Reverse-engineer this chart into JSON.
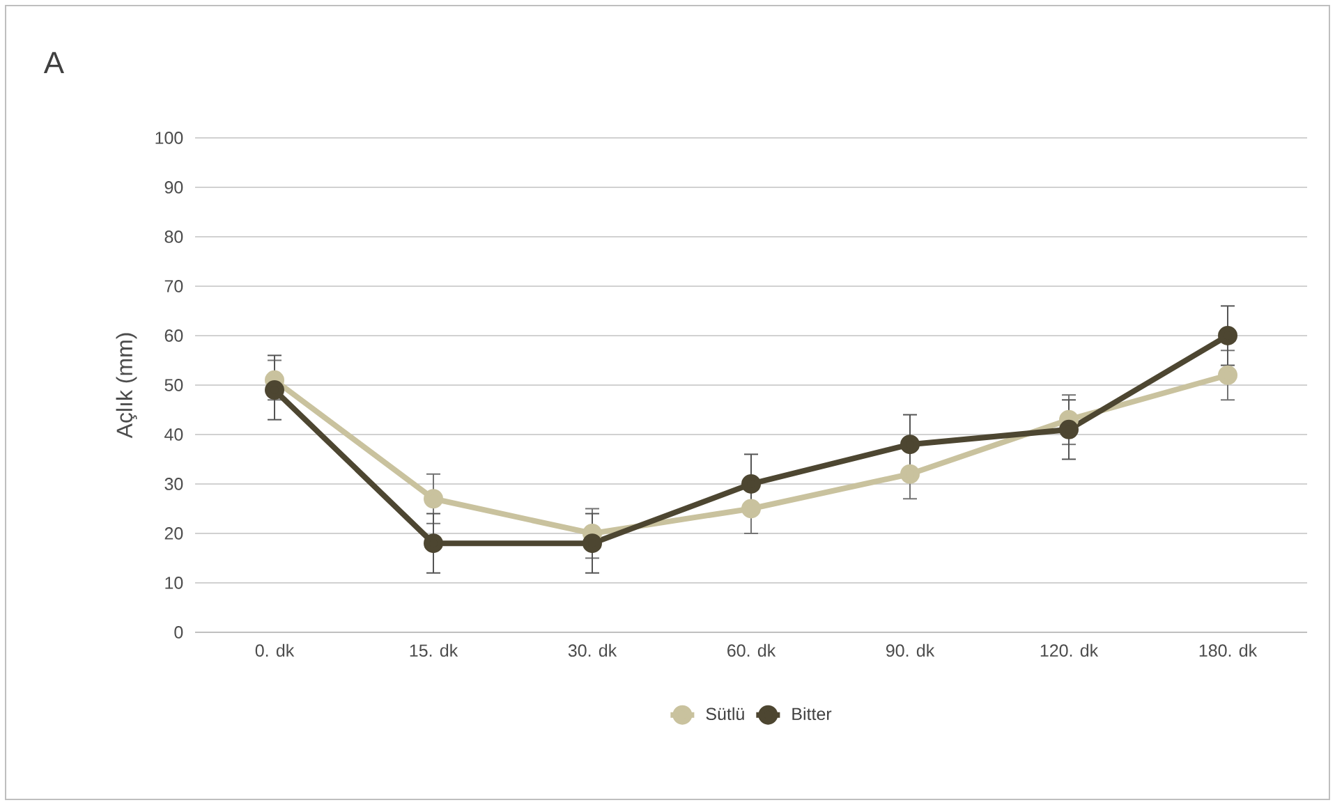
{
  "chart_data": {
    "type": "line",
    "title": "A",
    "ylabel": "Açlık (mm)",
    "categories": [
      "0. dk",
      "15. dk",
      "30. dk",
      "60. dk",
      "90. dk",
      "120. dk",
      "180. dk"
    ],
    "series": [
      {
        "name": "Sütlü",
        "color": "#c9c29e",
        "values": [
          51,
          27,
          20,
          25,
          32,
          43,
          52
        ],
        "errors": [
          4,
          5,
          5,
          5,
          5,
          5,
          5
        ]
      },
      {
        "name": "Bitter",
        "color": "#4d4631",
        "values": [
          49,
          18,
          18,
          30,
          38,
          41,
          60
        ],
        "errors": [
          [
            43,
            56
          ],
          6,
          6,
          6,
          6,
          6,
          6
        ]
      }
    ],
    "ylim": [
      0,
      100
    ],
    "yticks": [
      0,
      10,
      20,
      30,
      40,
      50,
      60,
      70,
      80,
      90,
      100
    ],
    "grid": "y",
    "legend": "bottom",
    "marker": "circle",
    "line_style": "solid"
  }
}
